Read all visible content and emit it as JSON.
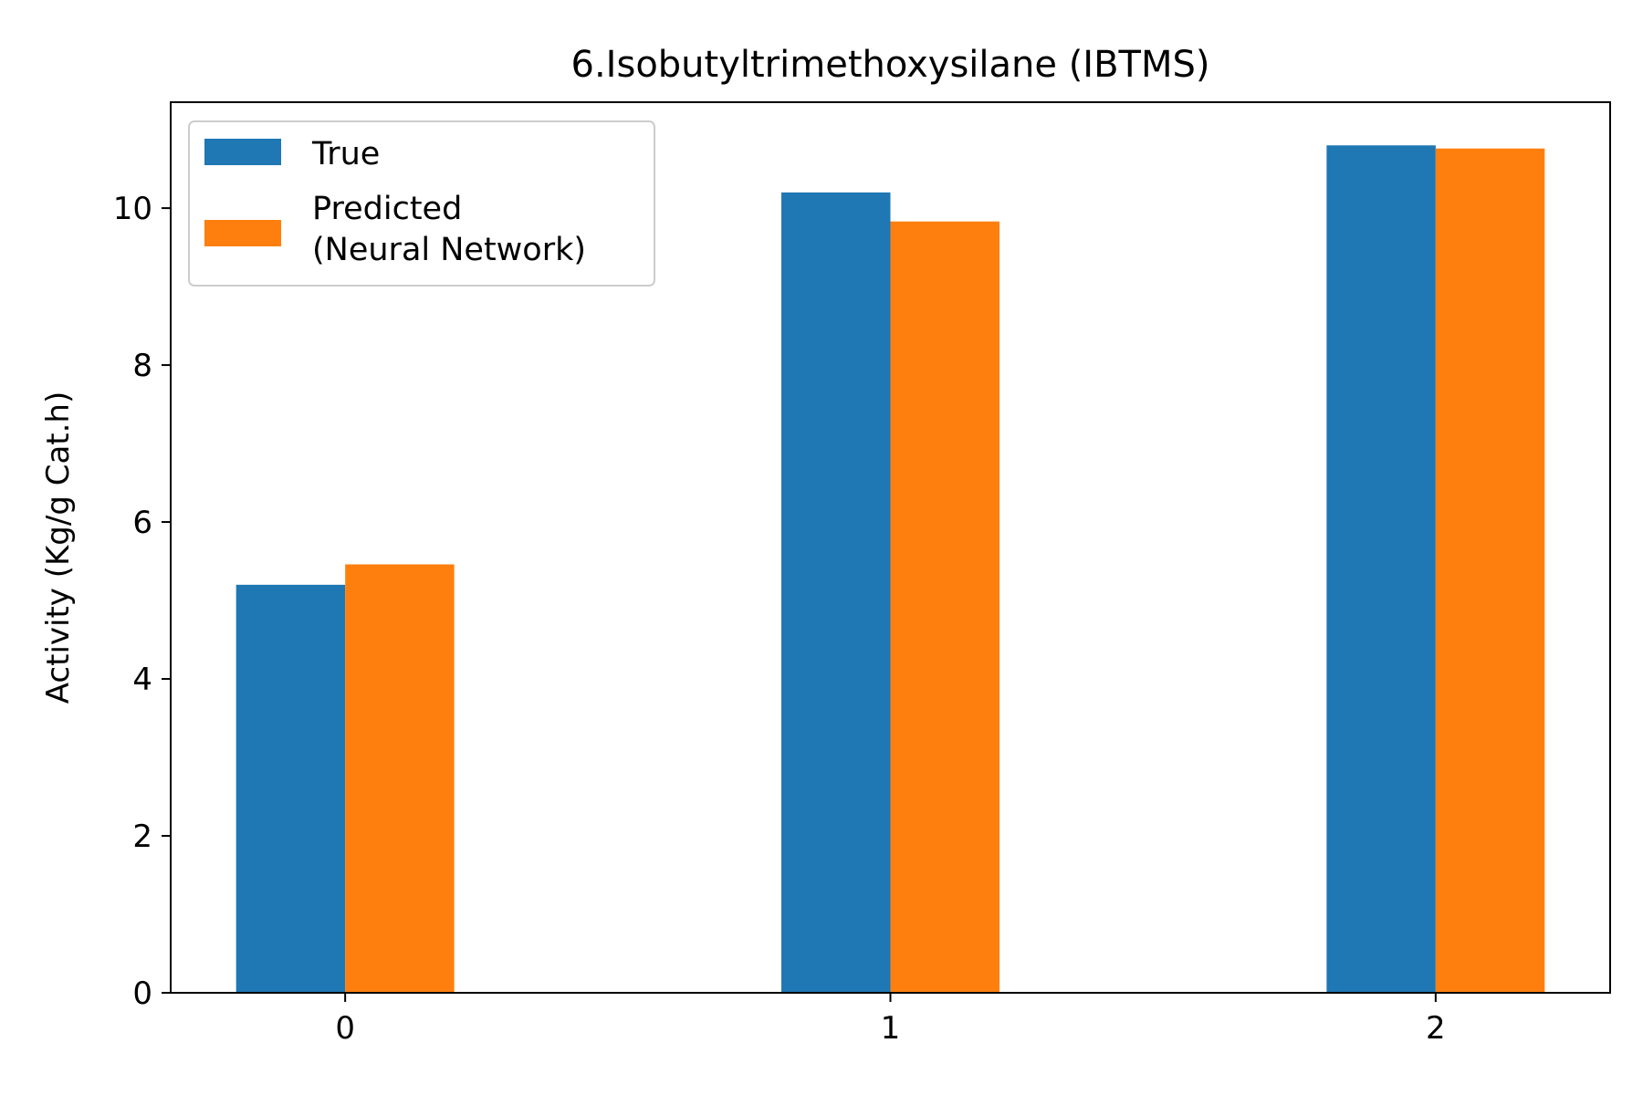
{
  "chart_data": {
    "type": "bar",
    "title": "6.Isobutyltrimethoxysilane (IBTMS)",
    "xlabel": "",
    "ylabel": "Activity (Kg/g Cat.h)",
    "categories": [
      "0",
      "1",
      "2"
    ],
    "series": [
      {
        "name": "True",
        "values": [
          5.2,
          10.2,
          10.8
        ]
      },
      {
        "name": "Predicted\n(Neural Network)",
        "values": [
          5.46,
          9.83,
          10.76
        ]
      }
    ],
    "ylim": [
      0,
      11.35
    ],
    "xlim": [
      -0.32,
      2.32
    ],
    "yticks": [
      0,
      2,
      4,
      6,
      8,
      10
    ],
    "grid": false,
    "legend_position": "upper-left",
    "colors": [
      "#1f77b4",
      "#ff7f0e"
    ]
  }
}
